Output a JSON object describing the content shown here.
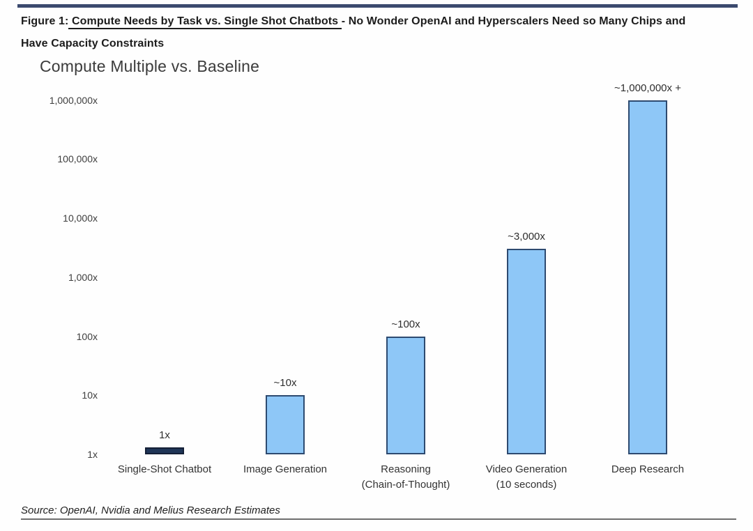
{
  "header": {
    "rule_color": "#3b4a6e",
    "figure_prefix": "Figure 1:",
    "figure_underlined": " Compute Needs by Task vs. Single Shot Chatbots ",
    "figure_rest": "- No Wonder OpenAI and Hyperscalers Need so Many Chips and",
    "figure_line2": "Have Capacity Constraints"
  },
  "chart_data": {
    "type": "bar",
    "title": "Compute Multiple vs. Baseline",
    "xlabel": "",
    "ylabel": "",
    "yscale": "log",
    "ylim": [
      1,
      1000000
    ],
    "grid": false,
    "legend": "none",
    "categories": [
      [
        "Single-Shot Chatbot"
      ],
      [
        "Image Generation"
      ],
      [
        "Reasoning",
        "(Chain-of-Thought)"
      ],
      [
        "Video Generation",
        "(10 seconds)"
      ],
      [
        "Deep Research"
      ]
    ],
    "values": [
      1,
      10,
      100,
      3000,
      1000000
    ],
    "value_labels": [
      "1x",
      "~10x",
      "~100x",
      "~3,000x",
      "~1,000,000x +"
    ],
    "y_ticks": [
      "1x",
      "10x",
      "100x",
      "1,000x",
      "10,000x",
      "100,000x",
      "1,000,000x"
    ],
    "bar_fill_colors": [
      "#1f3557",
      "#8ec7f7",
      "#8ec7f7",
      "#8ec7f7",
      "#8ec7f7"
    ],
    "bar_border_colors": [
      "#141f36",
      "#2d4a70",
      "#2d4a70",
      "#2d4a70",
      "#2d4a70"
    ]
  },
  "footer": {
    "source": "Source: OpenAI, Nvidia and Melius Research Estimates"
  }
}
